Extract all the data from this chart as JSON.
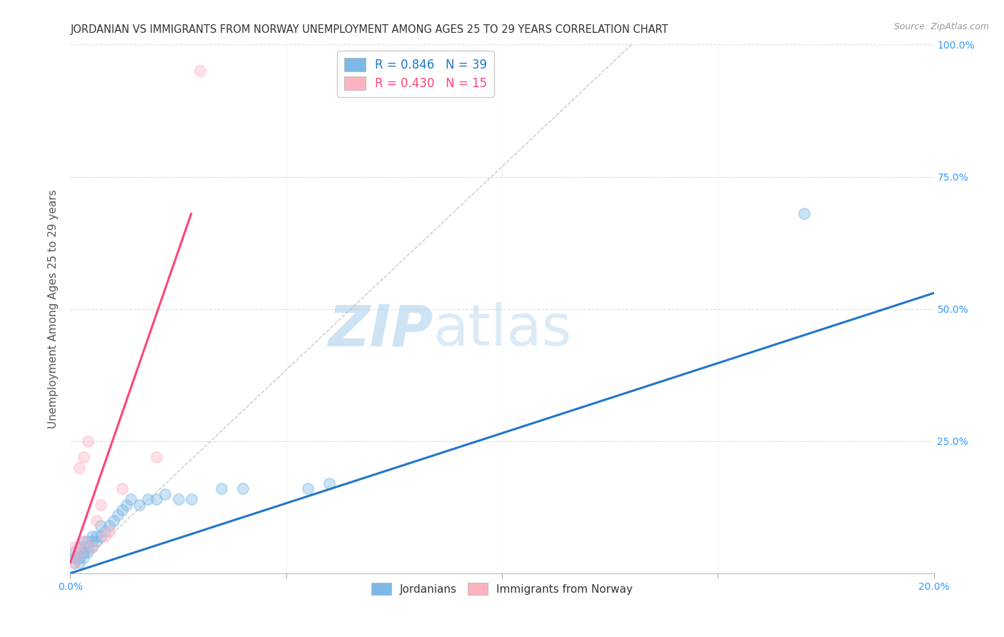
{
  "title": "JORDANIAN VS IMMIGRANTS FROM NORWAY UNEMPLOYMENT AMONG AGES 25 TO 29 YEARS CORRELATION CHART",
  "source": "Source: ZipAtlas.com",
  "ylabel": "Unemployment Among Ages 25 to 29 years",
  "xlim": [
    0,
    0.2
  ],
  "ylim": [
    0,
    1.0
  ],
  "blue_color": "#7CB9E8",
  "pink_color": "#FFB3C1",
  "blue_line_color": "#2176C7",
  "pink_line_color": "#FF4477",
  "legend_R_blue": "R = 0.846",
  "legend_N_blue": "N = 39",
  "legend_R_pink": "R = 0.430",
  "legend_N_pink": "N = 15",
  "watermark_zip": "ZIP",
  "watermark_atlas": "atlas",
  "blue_scatter_x": [
    0.001,
    0.001,
    0.001,
    0.002,
    0.002,
    0.002,
    0.002,
    0.003,
    0.003,
    0.003,
    0.003,
    0.004,
    0.004,
    0.004,
    0.005,
    0.005,
    0.005,
    0.006,
    0.006,
    0.007,
    0.007,
    0.008,
    0.009,
    0.01,
    0.011,
    0.012,
    0.013,
    0.014,
    0.016,
    0.018,
    0.02,
    0.022,
    0.025,
    0.028,
    0.035,
    0.04,
    0.055,
    0.06,
    0.17
  ],
  "blue_scatter_y": [
    0.02,
    0.03,
    0.04,
    0.02,
    0.03,
    0.04,
    0.05,
    0.03,
    0.04,
    0.05,
    0.06,
    0.04,
    0.05,
    0.06,
    0.05,
    0.06,
    0.07,
    0.06,
    0.07,
    0.07,
    0.09,
    0.08,
    0.09,
    0.1,
    0.11,
    0.12,
    0.13,
    0.14,
    0.13,
    0.14,
    0.14,
    0.15,
    0.14,
    0.14,
    0.16,
    0.16,
    0.16,
    0.17,
    0.68
  ],
  "pink_scatter_x": [
    0.001,
    0.001,
    0.002,
    0.002,
    0.003,
    0.003,
    0.004,
    0.005,
    0.006,
    0.007,
    0.008,
    0.009,
    0.012,
    0.02,
    0.03
  ],
  "pink_scatter_y": [
    0.02,
    0.05,
    0.04,
    0.2,
    0.06,
    0.22,
    0.25,
    0.05,
    0.1,
    0.13,
    0.07,
    0.08,
    0.16,
    0.22,
    0.95
  ],
  "blue_line_x": [
    0.0,
    0.2
  ],
  "blue_line_y": [
    0.0,
    0.53
  ],
  "pink_line_x": [
    0.0,
    0.028
  ],
  "pink_line_y": [
    0.02,
    0.68
  ],
  "diag_line_x": [
    0.0,
    0.13
  ],
  "diag_line_y": [
    0.0,
    1.0
  ],
  "title_color": "#333333",
  "axis_color": "#3399FF",
  "grid_color": "#DDDDDD",
  "watermark_color_zip": "#9EC8E8",
  "watermark_color_atlas": "#B8D8EE",
  "title_fontsize": 10.5,
  "label_fontsize": 11,
  "tick_fontsize": 10,
  "scatter_size": 120,
  "scatter_alpha": 0.4,
  "scatter_linewidth": 1.5
}
